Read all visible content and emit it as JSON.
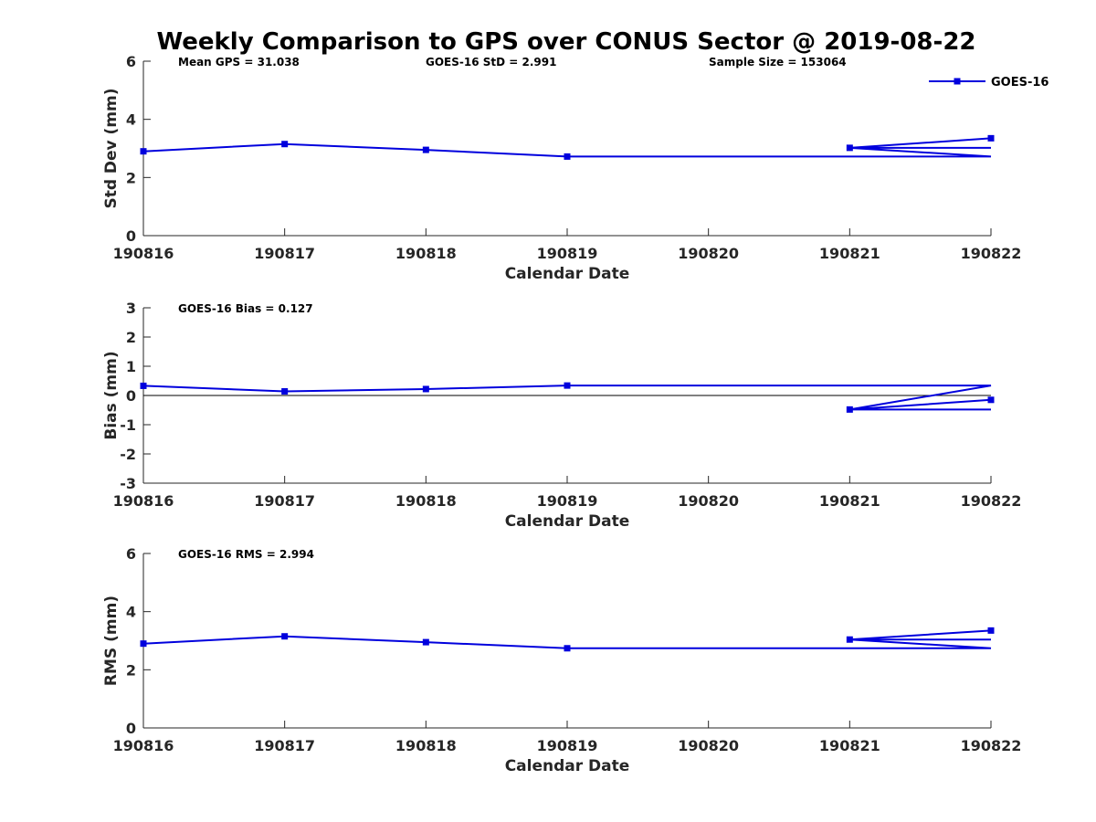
{
  "chart_data": {
    "type": "line",
    "title": "Weekly Comparison to GPS over CONUS Sector @ 2019-08-22",
    "legend": {
      "placement": "top-right",
      "entries": [
        "GOES-16"
      ]
    },
    "series_color": "#0000dd",
    "panels": [
      {
        "ylabel": "Std Dev (mm)",
        "xlabel": "Calendar Date",
        "ylim": [
          0,
          6
        ],
        "yticks": [
          0,
          2,
          4,
          6
        ],
        "xticks": [
          "190816",
          "190817",
          "190818",
          "190819",
          "190820",
          "190821",
          "190822"
        ],
        "annotations": [
          "Mean GPS = 31.038",
          "GOES-16 StD = 2.991",
          "Sample Size = 153064"
        ],
        "zero_line": false,
        "series": [
          {
            "name": "GOES-16",
            "points": [
              {
                "x": "190816",
                "y": 2.9
              },
              {
                "x": "190817",
                "y": 3.15
              },
              {
                "x": "190818",
                "y": 2.95
              },
              {
                "x": "190819",
                "y": 2.72
              },
              {
                "x": "190822",
                "y": 2.72
              },
              {
                "x": "190821",
                "y": 3.02
              },
              {
                "x": "190822",
                "y": 3.02
              },
              {
                "x": "190821",
                "y": 3.02
              },
              {
                "x": "190822",
                "y": 3.35
              }
            ],
            "markers": [
              {
                "x": "190816",
                "y": 2.9
              },
              {
                "x": "190817",
                "y": 3.15
              },
              {
                "x": "190818",
                "y": 2.95
              },
              {
                "x": "190819",
                "y": 2.72
              },
              {
                "x": "190821",
                "y": 3.02
              },
              {
                "x": "190822",
                "y": 3.35
              }
            ]
          }
        ]
      },
      {
        "ylabel": "Bias (mm)",
        "xlabel": "Calendar Date",
        "ylim": [
          -3,
          3
        ],
        "yticks": [
          -3,
          -2,
          -1,
          0,
          1,
          2,
          3
        ],
        "xticks": [
          "190816",
          "190817",
          "190818",
          "190819",
          "190820",
          "190821",
          "190822"
        ],
        "annotations": [
          "GOES-16 Bias  = 0.127"
        ],
        "zero_line": true,
        "series": [
          {
            "name": "GOES-16",
            "points": [
              {
                "x": "190816",
                "y": 0.33
              },
              {
                "x": "190817",
                "y": 0.14
              },
              {
                "x": "190818",
                "y": 0.22
              },
              {
                "x": "190819",
                "y": 0.34
              },
              {
                "x": "190822",
                "y": 0.34
              },
              {
                "x": "190821",
                "y": -0.48
              },
              {
                "x": "190822",
                "y": -0.48
              },
              {
                "x": "190821",
                "y": -0.48
              },
              {
                "x": "190822",
                "y": -0.15
              }
            ],
            "markers": [
              {
                "x": "190816",
                "y": 0.33
              },
              {
                "x": "190817",
                "y": 0.14
              },
              {
                "x": "190818",
                "y": 0.22
              },
              {
                "x": "190819",
                "y": 0.34
              },
              {
                "x": "190821",
                "y": -0.48
              },
              {
                "x": "190822",
                "y": -0.15
              }
            ]
          }
        ]
      },
      {
        "ylabel": "RMS (mm)",
        "xlabel": "Calendar Date",
        "ylim": [
          0,
          6
        ],
        "yticks": [
          0,
          2,
          4,
          6
        ],
        "xticks": [
          "190816",
          "190817",
          "190818",
          "190819",
          "190820",
          "190821",
          "190822"
        ],
        "annotations": [
          "GOES-16 RMS = 2.994"
        ],
        "zero_line": false,
        "series": [
          {
            "name": "GOES-16",
            "points": [
              {
                "x": "190816",
                "y": 2.9
              },
              {
                "x": "190817",
                "y": 3.15
              },
              {
                "x": "190818",
                "y": 2.95
              },
              {
                "x": "190819",
                "y": 2.74
              },
              {
                "x": "190822",
                "y": 2.74
              },
              {
                "x": "190821",
                "y": 3.04
              },
              {
                "x": "190822",
                "y": 3.04
              },
              {
                "x": "190821",
                "y": 3.04
              },
              {
                "x": "190822",
                "y": 3.35
              }
            ],
            "markers": [
              {
                "x": "190816",
                "y": 2.9
              },
              {
                "x": "190817",
                "y": 3.15
              },
              {
                "x": "190818",
                "y": 2.95
              },
              {
                "x": "190819",
                "y": 2.74
              },
              {
                "x": "190821",
                "y": 3.04
              },
              {
                "x": "190822",
                "y": 3.35
              }
            ]
          }
        ]
      }
    ]
  }
}
